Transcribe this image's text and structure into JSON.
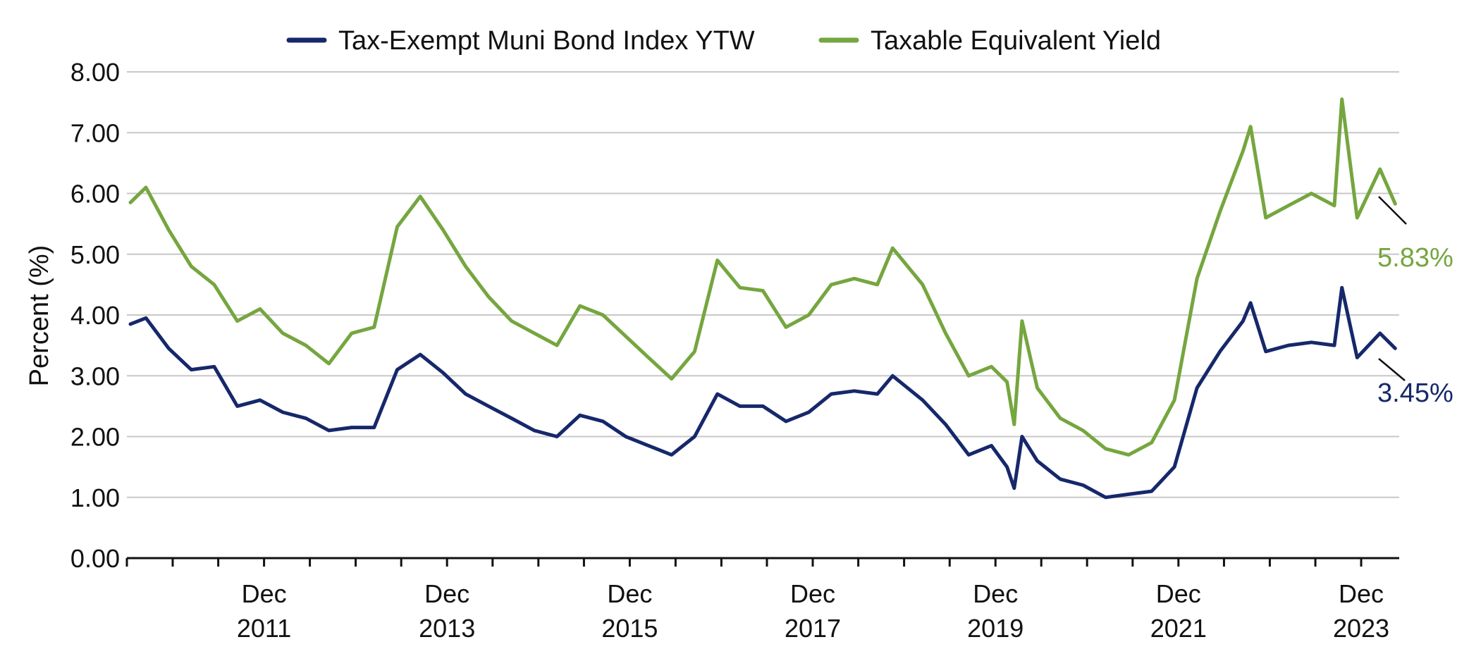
{
  "chart_data": {
    "type": "line",
    "ylabel": "Percent (%)",
    "ylim": [
      0,
      8
    ],
    "yticks": [
      "0.00",
      "1.00",
      "2.00",
      "3.00",
      "4.00",
      "5.00",
      "6.00",
      "7.00",
      "8.00"
    ],
    "xlim": [
      "2010-07-01",
      "2024-05-31"
    ],
    "xticks": [
      {
        "top": "Dec",
        "bottom": "2011"
      },
      {
        "top": "Dec",
        "bottom": "2013"
      },
      {
        "top": "Dec",
        "bottom": "2015"
      },
      {
        "top": "Dec",
        "bottom": "2017"
      },
      {
        "top": "Dec",
        "bottom": "2019"
      },
      {
        "top": "Dec",
        "bottom": "2021"
      },
      {
        "top": "Dec",
        "bottom": "2023"
      }
    ],
    "grid": true,
    "legend_position": "top",
    "series": [
      {
        "name": "Tax-Exempt Muni Bond Index YTW",
        "color": "#16286b",
        "end_label": "3.45%",
        "x": [
          "2010-07",
          "2010-09",
          "2010-12",
          "2011-03",
          "2011-06",
          "2011-09",
          "2011-12",
          "2012-03",
          "2012-06",
          "2012-09",
          "2012-12",
          "2013-03",
          "2013-06",
          "2013-09",
          "2013-12",
          "2014-03",
          "2014-06",
          "2014-09",
          "2014-12",
          "2015-03",
          "2015-06",
          "2015-09",
          "2015-12",
          "2016-03",
          "2016-06",
          "2016-09",
          "2016-12",
          "2017-03",
          "2017-06",
          "2017-09",
          "2017-12",
          "2018-03",
          "2018-06",
          "2018-09",
          "2018-11",
          "2019-03",
          "2019-06",
          "2019-09",
          "2019-12",
          "2020-02",
          "2020-03",
          "2020-04",
          "2020-06",
          "2020-09",
          "2020-12",
          "2021-03",
          "2021-06",
          "2021-09",
          "2021-12",
          "2022-03",
          "2022-06",
          "2022-09",
          "2022-10",
          "2022-12",
          "2023-03",
          "2023-06",
          "2023-09",
          "2023-10",
          "2023-12",
          "2024-03",
          "2024-05"
        ],
        "y": [
          3.85,
          3.95,
          3.45,
          3.1,
          3.15,
          2.5,
          2.6,
          2.4,
          2.3,
          2.1,
          2.15,
          2.15,
          3.1,
          3.35,
          3.05,
          2.7,
          2.5,
          2.3,
          2.1,
          2.0,
          2.35,
          2.25,
          2.0,
          1.85,
          1.7,
          2.0,
          2.7,
          2.5,
          2.5,
          2.25,
          2.4,
          2.7,
          2.75,
          2.7,
          3.0,
          2.6,
          2.2,
          1.7,
          1.85,
          1.5,
          1.15,
          2.0,
          1.6,
          1.3,
          1.2,
          1.0,
          1.05,
          1.1,
          1.5,
          2.8,
          3.4,
          3.9,
          4.2,
          3.4,
          3.5,
          3.55,
          3.5,
          4.45,
          3.3,
          3.7,
          3.45
        ]
      },
      {
        "name": "Taxable Equivalent Yield",
        "color": "#75a63f",
        "end_label": "5.83%",
        "x": [
          "2010-07",
          "2010-09",
          "2010-12",
          "2011-03",
          "2011-06",
          "2011-09",
          "2011-12",
          "2012-03",
          "2012-06",
          "2012-09",
          "2012-12",
          "2013-03",
          "2013-06",
          "2013-09",
          "2013-12",
          "2014-03",
          "2014-06",
          "2014-09",
          "2014-12",
          "2015-03",
          "2015-06",
          "2015-09",
          "2015-12",
          "2016-03",
          "2016-06",
          "2016-09",
          "2016-12",
          "2017-03",
          "2017-06",
          "2017-09",
          "2017-12",
          "2018-03",
          "2018-06",
          "2018-09",
          "2018-11",
          "2019-03",
          "2019-06",
          "2019-09",
          "2019-12",
          "2020-02",
          "2020-03",
          "2020-04",
          "2020-06",
          "2020-09",
          "2020-12",
          "2021-03",
          "2021-06",
          "2021-09",
          "2021-12",
          "2022-03",
          "2022-06",
          "2022-09",
          "2022-10",
          "2022-12",
          "2023-03",
          "2023-06",
          "2023-09",
          "2023-10",
          "2023-12",
          "2024-03",
          "2024-05"
        ],
        "y": [
          5.85,
          6.1,
          5.4,
          4.8,
          4.5,
          3.9,
          4.1,
          3.7,
          3.5,
          3.2,
          3.7,
          3.8,
          5.45,
          5.95,
          5.4,
          4.8,
          4.3,
          3.9,
          3.7,
          3.5,
          4.15,
          4.0,
          3.65,
          3.3,
          2.95,
          3.4,
          4.9,
          4.45,
          4.4,
          3.8,
          4.0,
          4.5,
          4.6,
          4.5,
          5.1,
          4.5,
          3.7,
          3.0,
          3.15,
          2.9,
          2.2,
          3.9,
          2.8,
          2.3,
          2.1,
          1.8,
          1.7,
          1.9,
          2.6,
          4.6,
          5.7,
          6.7,
          7.1,
          5.6,
          5.8,
          6.0,
          5.8,
          7.55,
          5.6,
          6.4,
          5.83
        ]
      }
    ]
  }
}
